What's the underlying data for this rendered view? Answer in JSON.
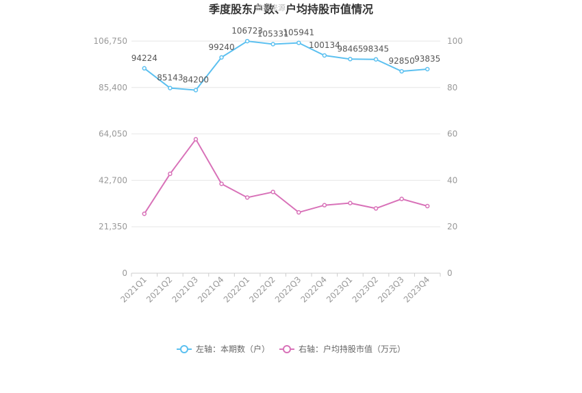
{
  "chart_data": {
    "type": "line",
    "title": "季度股东户数、户均持股市值情况",
    "watermark": "数据来源",
    "categories": [
      "2021Q1",
      "2021Q2",
      "2021Q3",
      "2021Q4",
      "2022Q1",
      "2022Q2",
      "2022Q3",
      "2022Q4",
      "2023Q1",
      "2023Q2",
      "2023Q3",
      "2023Q4"
    ],
    "left_axis": {
      "ticks": [
        "0",
        "21,350",
        "42,700",
        "64,050",
        "85,400",
        "106,750"
      ],
      "ylim": [
        0,
        106750
      ]
    },
    "right_axis": {
      "ticks": [
        "0",
        "20",
        "40",
        "60",
        "80",
        "100"
      ],
      "ylim": [
        0,
        100
      ]
    },
    "grid": true,
    "legend_position": "bottom",
    "series": [
      {
        "name": "左轴：本期数（户）",
        "axis": "left",
        "color": "#5bc0f0",
        "values": [
          94224,
          85143,
          84200,
          99240,
          106723,
          105331,
          105941,
          100134,
          98465,
          98345,
          92850,
          93835
        ],
        "labels": [
          "94224",
          "85143",
          "84200",
          "99240",
          "106723",
          "105331",
          "105941",
          "100134",
          "98465",
          "98345",
          "92850",
          "93835"
        ]
      },
      {
        "name": "右轴：户均持股市值（万元）",
        "axis": "right",
        "color": "#d871b8",
        "values": [
          25.6,
          42.8,
          57.7,
          38.5,
          32.6,
          35.0,
          26.2,
          29.3,
          30.2,
          27.9,
          32.0,
          28.9
        ]
      }
    ]
  }
}
